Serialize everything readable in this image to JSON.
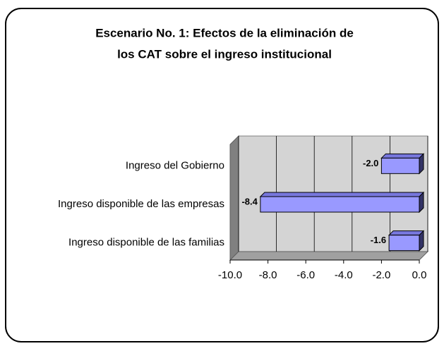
{
  "chart_data": {
    "type": "bar3d_horizontal",
    "title": "Escenario No. 1: Efectos de la eliminación de",
    "subtitle": "los CAT sobre el ingreso institucional",
    "categories": [
      "Ingreso del Gobierno",
      "Ingreso disponible de las empresas",
      "Ingreso disponible de las familias"
    ],
    "values": [
      -2,
      -8.4,
      -1.6
    ],
    "value_labels": [
      "-2.0",
      "-8.4",
      "-1.6"
    ],
    "color": "#9999ff",
    "xlim": [
      -10,
      0
    ],
    "xticks": [
      {
        "value": -10,
        "label": "-10.0"
      },
      {
        "value": -8,
        "label": "-8.0"
      },
      {
        "value": -6,
        "label": "-6.0"
      },
      {
        "value": -4,
        "label": "-4.0"
      },
      {
        "value": -2,
        "label": "-2.0"
      },
      {
        "value": 0,
        "label": "0.0"
      }
    ],
    "grid": true
  }
}
